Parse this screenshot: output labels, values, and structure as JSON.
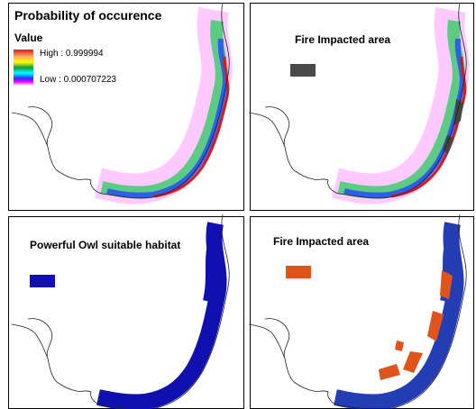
{
  "panels": [
    {
      "title": "Probability of occurence",
      "legend_title": "Value",
      "legend_high": "High : 0.999994",
      "legend_low": "Low : 0.000707223"
    },
    {
      "title": "Fire Impacted area"
    },
    {
      "title": "Powerful Owl suitable habitat"
    },
    {
      "title": "Fire Impacted area"
    }
  ]
}
